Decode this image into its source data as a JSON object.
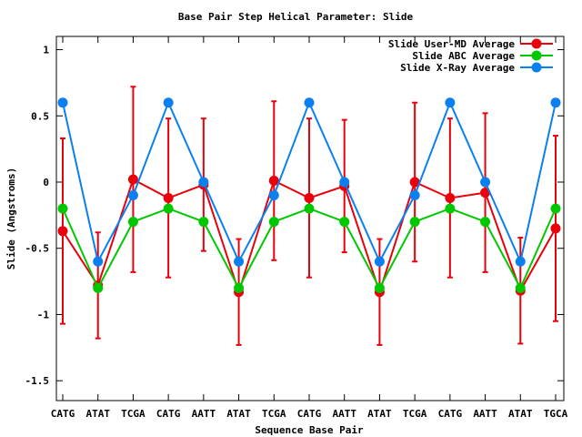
{
  "chart_data": {
    "type": "line",
    "title": "Base Pair Step Helical Parameter: Slide",
    "xlabel": "Sequence Base Pair",
    "ylabel": "Slide (Angstroms)",
    "ylim": [
      -1.65,
      1.1
    ],
    "yticks": [
      1,
      0.5,
      0,
      -0.5,
      -1,
      -1.5
    ],
    "ytick_labels": [
      "1",
      "0.5",
      "0",
      "-0.5",
      "-1",
      "-1.5"
    ],
    "categories": [
      "CATG",
      "ATAT",
      "TCGA",
      "CATG",
      "AATT",
      "ATAT",
      "TCGA",
      "CATG",
      "AATT",
      "ATAT",
      "TCGA",
      "CATG",
      "AATT",
      "ATAT",
      "TGCA"
    ],
    "grid": false,
    "legend_position": "top-right",
    "series": [
      {
        "name": "Slide User-MD Average",
        "color": "#e8000b",
        "values": [
          -0.37,
          -0.78,
          0.02,
          -0.12,
          -0.02,
          -0.83,
          0.01,
          -0.12,
          -0.03,
          -0.83,
          0.0,
          -0.12,
          -0.08,
          -0.82,
          -0.35
        ],
        "error": [
          0.7,
          0.4,
          0.7,
          0.6,
          0.5,
          0.4,
          0.6,
          0.6,
          0.5,
          0.4,
          0.6,
          0.6,
          0.6,
          0.4,
          0.7
        ]
      },
      {
        "name": "Slide ABC Average",
        "color": "#00c800",
        "values": [
          -0.2,
          -0.8,
          -0.3,
          -0.2,
          -0.3,
          -0.8,
          -0.3,
          -0.2,
          -0.3,
          -0.8,
          -0.3,
          -0.2,
          -0.3,
          -0.8,
          -0.2
        ]
      },
      {
        "name": "Slide X-Ray Average",
        "color": "#0a7ff0",
        "values": [
          0.6,
          -0.6,
          -0.1,
          0.6,
          0.0,
          -0.6,
          -0.1,
          0.6,
          0.0,
          -0.6,
          -0.1,
          0.6,
          0.0,
          -0.6,
          0.6
        ]
      }
    ]
  }
}
